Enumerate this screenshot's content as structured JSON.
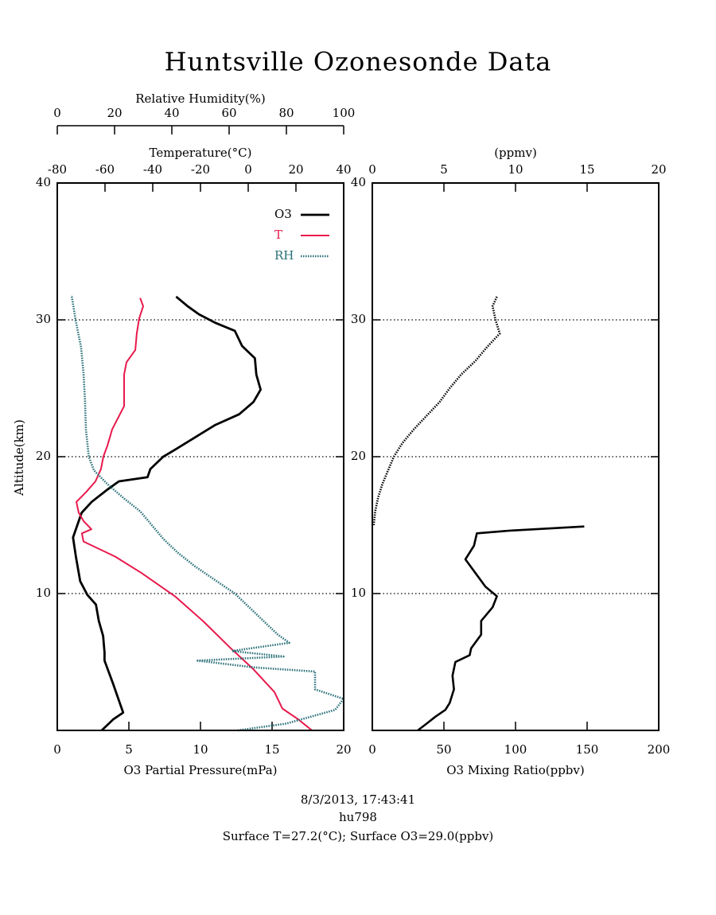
{
  "title": "Huntsville Ozonesonde Data",
  "footer": [
    "8/3/2013, 17:43:41",
    "hu798",
    "Surface T=27.2(°C); Surface O3=29.0(ppbv)"
  ],
  "chart_data": [
    {
      "type": "line",
      "ylabel": "Altitude(km)",
      "ylim": [
        0,
        40
      ],
      "yticks": [
        10,
        20,
        30,
        40
      ],
      "grid": true,
      "legend": "upper right",
      "xlabel": "O3 Partial Pressure(mPa)",
      "xlim": [
        0,
        20
      ],
      "xticks": [
        0,
        5,
        10,
        15,
        20
      ],
      "x2label": "Temperature(°C)",
      "x2lim": [
        -80,
        40
      ],
      "x2ticks": [
        -80,
        -60,
        -40,
        -20,
        0,
        20,
        40
      ],
      "x3label": "Relative Humidity(%)",
      "x3lim": [
        0,
        100
      ],
      "x3ticks": [
        0,
        20,
        40,
        60,
        80,
        100
      ],
      "series": [
        {
          "name": "O3",
          "color": "#000000",
          "axis": "x",
          "values": [
            3.1,
            3.9,
            4.6,
            4.3,
            3.9,
            3.3,
            3.3,
            3.2,
            2.9,
            2.7,
            2.1,
            1.6,
            1.3,
            1.1,
            1.4,
            1.7,
            2.4,
            3.5,
            4.3,
            6.3,
            6.5,
            7.4,
            8.2,
            9.6,
            11,
            12.7,
            13.7,
            14.2,
            13.9,
            13.8,
            12.9,
            12.4,
            11,
            9.9,
            9.1,
            8.3
          ],
          "altitude": [
            0,
            0.8,
            1.3,
            2.2,
            3.4,
            5.1,
            5.7,
            6.9,
            8,
            9.2,
            9.9,
            10.9,
            12.7,
            14.1,
            15,
            15.9,
            16.7,
            17.6,
            18.2,
            18.5,
            19.1,
            20,
            20.5,
            21.4,
            22.3,
            23.1,
            24,
            24.9,
            26,
            27.2,
            28.1,
            29.2,
            29.8,
            30.4,
            31,
            31.7
          ]
        },
        {
          "name": "T",
          "color": "#e8194b",
          "axis": "x2",
          "values": [
            26.7,
            21,
            14.3,
            11,
            2,
            -7.3,
            -19,
            -30.7,
            -44.7,
            -55.7,
            -69,
            -69.7,
            -65.7,
            -69,
            -71,
            -72,
            -68,
            -64,
            -61.7,
            -60.7,
            -59,
            -57,
            -52,
            -52,
            -52,
            -51,
            -47.3,
            -46.7,
            -45.7,
            -44,
            -45.3
          ],
          "altitude": [
            0,
            0.8,
            1.6,
            2.8,
            4.5,
            6,
            8,
            9.8,
            11.5,
            12.7,
            13.8,
            14.4,
            14.7,
            15.3,
            15.9,
            16.7,
            17.4,
            18.2,
            19.1,
            20,
            20.8,
            22,
            23.7,
            24.9,
            26,
            26.9,
            27.8,
            29,
            30.1,
            31,
            31.6
          ]
        },
        {
          "name": "RH",
          "color": "#2a6f78",
          "axis": "x3",
          "values": [
            63,
            80,
            97,
            100,
            90,
            90,
            69,
            49,
            79,
            61,
            81,
            77,
            72,
            67,
            62,
            55,
            48,
            42,
            37,
            33,
            29,
            23,
            17.5,
            12.8,
            11,
            10,
            9.7,
            9.2,
            8.3,
            6.4,
            5.6,
            5
          ],
          "altitude": [
            0,
            0.5,
            1.5,
            2.3,
            3,
            4.3,
            4.6,
            5.1,
            5.4,
            5.8,
            6.4,
            7,
            8,
            9,
            10,
            11,
            12,
            13,
            14,
            15,
            16,
            17,
            18,
            19,
            20,
            22,
            24,
            26,
            28,
            30,
            31,
            31.8
          ]
        }
      ]
    },
    {
      "type": "line",
      "ylim": [
        0,
        40
      ],
      "yticks": [
        10,
        20,
        30,
        40
      ],
      "grid": true,
      "xlabel": "O3 Mixing Ratio(ppbv)",
      "xlim": [
        0,
        200
      ],
      "xticks": [
        0,
        50,
        100,
        150,
        200
      ],
      "x2label": "(ppmv)",
      "x2lim": [
        0,
        20
      ],
      "x2ticks": [
        0,
        5,
        10,
        15,
        20
      ],
      "series": [
        {
          "color": "#000000",
          "axis": "x",
          "values": [
            31.7,
            38,
            44,
            51,
            54,
            57,
            56,
            58,
            68,
            69,
            76,
            76,
            84,
            87,
            79,
            72,
            65,
            71,
            73,
            96,
            148
          ],
          "altitude": [
            0,
            0.5,
            1,
            1.5,
            2,
            3,
            4,
            5,
            5.5,
            6,
            7,
            8,
            9,
            9.8,
            10.5,
            11.5,
            12.5,
            13.5,
            14.4,
            14.6,
            14.9
          ]
        },
        {
          "color": "#000000",
          "axis": "x2",
          "values": [
            0.1,
            0.2,
            0.4,
            0.7,
            1.1,
            1.5,
            2.1,
            2.9,
            3.8,
            4.7,
            5.4,
            6.2,
            7.2,
            8,
            8.9,
            8.6,
            8.4,
            8.7
          ],
          "altitude": [
            15,
            16,
            17,
            18,
            19,
            20,
            21,
            22,
            23,
            24,
            25,
            26,
            27,
            28,
            29,
            30,
            31,
            31.7
          ]
        }
      ]
    }
  ]
}
